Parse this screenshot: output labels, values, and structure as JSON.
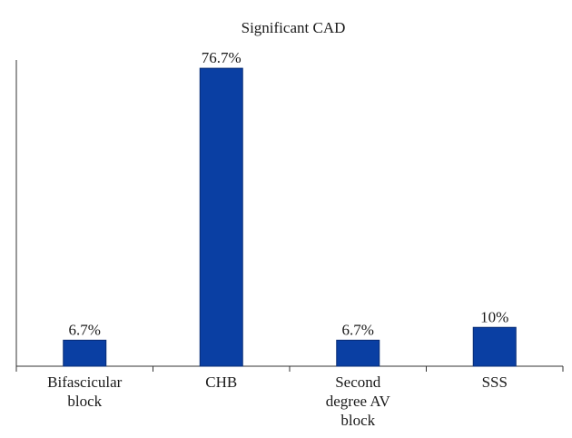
{
  "chart_data": {
    "type": "bar",
    "title": "Significant CAD",
    "categories": [
      [
        "Bifascicular",
        "block"
      ],
      [
        "CHB"
      ],
      [
        "Second",
        "degree AV",
        "block"
      ],
      [
        "SSS"
      ]
    ],
    "values": [
      6.7,
      76.7,
      6.7,
      10
    ],
    "data_labels": [
      "6.7%",
      "76.7%",
      "6.7%",
      "10%"
    ],
    "ylim": [
      0,
      80
    ],
    "grid": false,
    "colors": {
      "bar": "#0a3fa3",
      "bar_edge": "#072c75",
      "axis": "#333333",
      "text": "#1a1a1a"
    }
  }
}
